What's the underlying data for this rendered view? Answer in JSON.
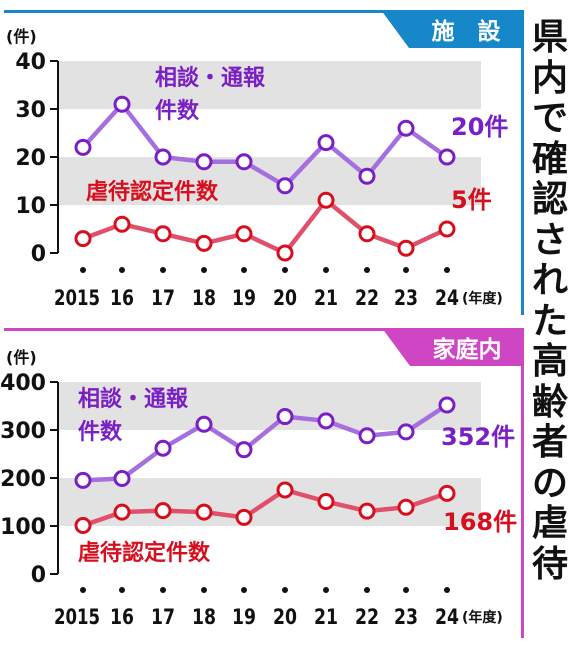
{
  "title": "県内で確認された高齢者の虐待",
  "x_unit": "(年度)",
  "y_unit": "(件)",
  "colors": {
    "purple": "#7a1fc4",
    "purple_line": "#a56fe0",
    "red": "#d60f1e",
    "red_line": "#e0506a",
    "panel_bar_facility": "#1687c9",
    "panel_bar_home": "#cf46c4",
    "band": "#e2e2e2"
  },
  "chart_data": [
    {
      "type": "line",
      "panel_label": "施　設",
      "categories": [
        "2015",
        "16",
        "17",
        "18",
        "19",
        "20",
        "21",
        "22",
        "23",
        "24"
      ],
      "ylim": [
        0,
        40
      ],
      "yticks": [
        "0",
        "10",
        "20",
        "30",
        "40"
      ],
      "grid": "alternating gray bands",
      "series": [
        {
          "name": "相談・通報\n件数",
          "values": [
            22,
            31,
            20,
            19,
            19,
            14,
            23,
            16,
            26,
            20
          ],
          "end_label": "20件"
        },
        {
          "name": "虐待認定件数",
          "values": [
            3,
            6,
            4,
            2,
            4,
            0,
            11,
            4,
            1,
            5
          ],
          "end_label": "5件"
        }
      ]
    },
    {
      "type": "line",
      "panel_label": "家庭内",
      "categories": [
        "2015",
        "16",
        "17",
        "18",
        "19",
        "20",
        "21",
        "22",
        "23",
        "24"
      ],
      "ylim": [
        0,
        400
      ],
      "yticks": [
        "0",
        "100",
        "200",
        "300",
        "400"
      ],
      "grid": "alternating gray bands",
      "series": [
        {
          "name": "相談・通報\n件数",
          "values": [
            195,
            199,
            262,
            312,
            259,
            328,
            319,
            288,
            296,
            352
          ],
          "end_label": "352件"
        },
        {
          "name": "虐待認定件数",
          "values": [
            101,
            129,
            132,
            129,
            118,
            175,
            151,
            131,
            139,
            168
          ],
          "end_label": "168件"
        }
      ]
    }
  ]
}
